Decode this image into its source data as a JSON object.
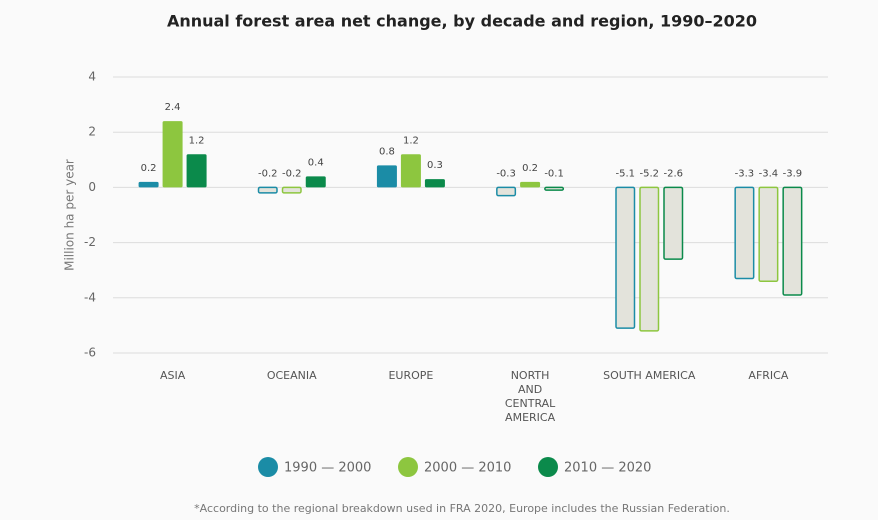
{
  "chart_data": {
    "type": "bar",
    "title": "Annual forest area net change, by decade and region, 1990–2020",
    "y_label": "Million ha per year",
    "categories": [
      "ASIA",
      "OCEANIA",
      "EUROPE",
      "NORTH AND CENTRAL AMERICA",
      "SOUTH AMERICA",
      "AFRICA"
    ],
    "series": [
      {
        "name": "1990 — 2000",
        "color": "#1b8ca6",
        "values": [
          0.2,
          -0.2,
          0.8,
          -0.3,
          -5.1,
          -3.3
        ]
      },
      {
        "name": "2000 — 2010",
        "color": "#8dc63f",
        "values": [
          2.4,
          -0.2,
          1.2,
          0.2,
          -5.2,
          -3.4
        ]
      },
      {
        "name": "2010 — 2020",
        "color": "#0b8a4b",
        "values": [
          1.2,
          0.4,
          0.3,
          -0.1,
          -2.6,
          -3.9
        ]
      }
    ],
    "ylim": [
      -6,
      4
    ],
    "yticks": [
      -6,
      -4,
      -2,
      0,
      2,
      4
    ],
    "grid": true,
    "legend": "bottom",
    "footnote": "*According to the regional breakdown used in FRA 2020, Europe includes the Russian Federation."
  }
}
